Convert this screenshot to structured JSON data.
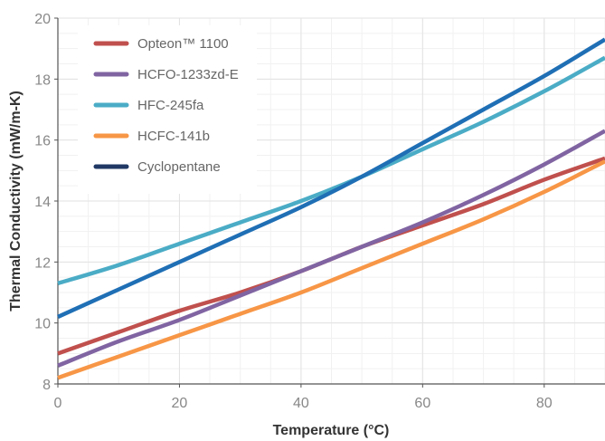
{
  "chart_data": {
    "type": "line",
    "title": "",
    "xlabel": "Temperature (°C)",
    "ylabel": "Thermal Conductivity (mW/m-K)",
    "xlim": [
      0,
      90
    ],
    "ylim": [
      8,
      20
    ],
    "x_ticks": [
      0,
      20,
      40,
      60,
      80
    ],
    "y_ticks": [
      8,
      10,
      12,
      14,
      16,
      18,
      20
    ],
    "grid": true,
    "legend_position": "top-left",
    "series": [
      {
        "name": "Opteon™ 1100",
        "color": "#c0504d",
        "x": [
          0,
          10,
          20,
          30,
          40,
          50,
          60,
          70,
          80,
          90
        ],
        "y": [
          9.0,
          9.7,
          10.4,
          11.0,
          11.7,
          12.5,
          13.2,
          13.9,
          14.7,
          15.4
        ]
      },
      {
        "name": "HCFO-1233zd-E",
        "color": "#8064a2",
        "x": [
          0,
          10,
          20,
          30,
          40,
          50,
          60,
          70,
          80,
          90
        ],
        "y": [
          8.6,
          9.4,
          10.1,
          10.9,
          11.7,
          12.5,
          13.3,
          14.2,
          15.2,
          16.3
        ]
      },
      {
        "name": "HFC-245fa",
        "color": "#4bacc6",
        "x": [
          0,
          10,
          20,
          30,
          40,
          50,
          60,
          70,
          80,
          90
        ],
        "y": [
          11.3,
          11.9,
          12.6,
          13.3,
          14.0,
          14.8,
          15.7,
          16.6,
          17.6,
          18.7
        ]
      },
      {
        "name": "HCFC-141b",
        "color": "#f79646",
        "x": [
          0,
          10,
          20,
          30,
          40,
          50,
          60,
          70,
          80,
          90
        ],
        "y": [
          8.2,
          8.9,
          9.6,
          10.3,
          11.0,
          11.8,
          12.6,
          13.4,
          14.3,
          15.3
        ]
      },
      {
        "name": "Cyclopentane",
        "color": "#1f6fb5",
        "legend_color": "#1f3864",
        "x": [
          0,
          10,
          20,
          30,
          40,
          50,
          60,
          70,
          80,
          90
        ],
        "y": [
          10.2,
          11.1,
          12.0,
          12.9,
          13.8,
          14.8,
          15.9,
          17.0,
          18.1,
          19.3
        ]
      }
    ]
  }
}
